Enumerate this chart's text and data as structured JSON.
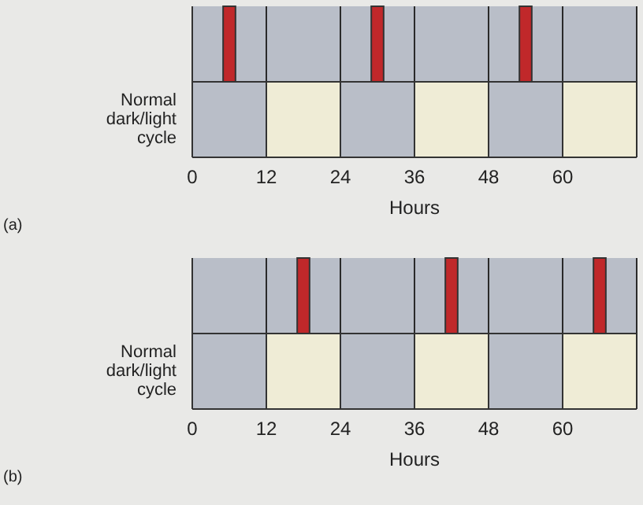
{
  "chart_data": [
    {
      "type": "bar",
      "orientation": "horizontal",
      "categories": [
        null,
        "Normal dark/light cycle"
      ],
      "xlabel": "Hours",
      "xlim": [
        0,
        72
      ],
      "xticks": [
        0,
        12,
        24,
        36,
        48,
        60
      ],
      "grid": "x",
      "annotations": [
        "(a)"
      ],
      "series": [
        {
          "color": "#c0282a",
          "values": [
            2,
            null
          ],
          "base": [
            5,
            null
          ]
        },
        {
          "color": "#c0282a",
          "values": [
            2,
            null
          ],
          "base": [
            29,
            null
          ]
        },
        {
          "color": "#c0282a",
          "values": [
            2,
            null
          ],
          "base": [
            53,
            null
          ]
        },
        {
          "color": "#b9bec8",
          "values": [
            null,
            12
          ],
          "base": [
            null,
            0
          ]
        },
        {
          "color": "#efecd6",
          "values": [
            null,
            12
          ],
          "base": [
            null,
            12
          ]
        },
        {
          "color": "#b9bec8",
          "values": [
            null,
            12
          ],
          "base": [
            null,
            24
          ]
        },
        {
          "color": "#efecd6",
          "values": [
            null,
            12
          ],
          "base": [
            null,
            36
          ]
        },
        {
          "color": "#b9bec8",
          "values": [
            null,
            12
          ],
          "base": [
            null,
            48
          ]
        },
        {
          "color": "#efecd6",
          "values": [
            null,
            12
          ],
          "base": [
            null,
            60
          ]
        }
      ]
    },
    {
      "type": "bar",
      "orientation": "horizontal",
      "categories": [
        null,
        "Normal dark/light cycle"
      ],
      "xlabel": "Hours",
      "xlim": [
        0,
        72
      ],
      "xticks": [
        0,
        12,
        24,
        36,
        48,
        60
      ],
      "grid": "x",
      "annotations": [
        "(b)"
      ],
      "series": [
        {
          "color": "#c0282a",
          "values": [
            2,
            null
          ],
          "base": [
            17,
            null
          ]
        },
        {
          "color": "#c0282a",
          "values": [
            2,
            null
          ],
          "base": [
            41,
            null
          ]
        },
        {
          "color": "#c0282a",
          "values": [
            2,
            null
          ],
          "base": [
            65,
            null
          ]
        },
        {
          "color": "#b9bec8",
          "values": [
            null,
            12
          ],
          "base": [
            null,
            0
          ]
        },
        {
          "color": "#efecd6",
          "values": [
            null,
            12
          ],
          "base": [
            null,
            12
          ]
        },
        {
          "color": "#b9bec8",
          "values": [
            null,
            12
          ],
          "base": [
            null,
            24
          ]
        },
        {
          "color": "#efecd6",
          "values": [
            null,
            12
          ],
          "base": [
            null,
            36
          ]
        },
        {
          "color": "#b9bec8",
          "values": [
            null,
            12
          ],
          "base": [
            null,
            48
          ]
        },
        {
          "color": "#efecd6",
          "values": [
            null,
            12
          ],
          "base": [
            null,
            60
          ]
        }
      ]
    }
  ]
}
